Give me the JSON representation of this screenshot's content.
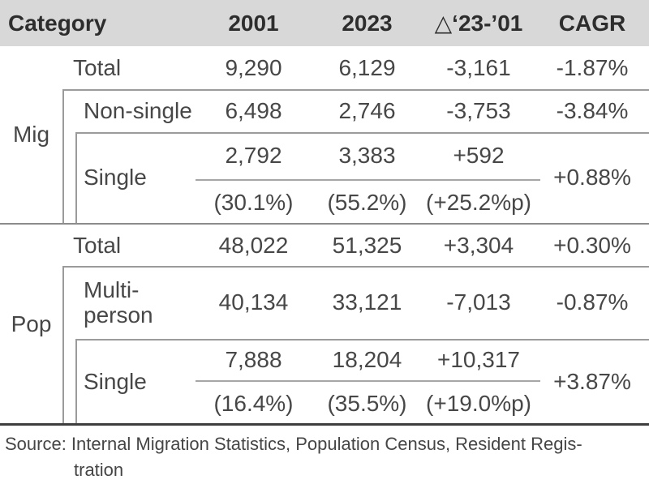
{
  "header": {
    "category": "Category",
    "y2001": "2001",
    "y2023": "2023",
    "delta": "△‘23-’01",
    "cagr": "CAGR"
  },
  "mig": {
    "group_label": "Mig",
    "total": {
      "label": "Total",
      "y2001": "9,290",
      "y2023": "6,129",
      "delta": "-3,161",
      "cagr": "-1.87%"
    },
    "nonsingle": {
      "label": "Non-single",
      "y2001": "6,498",
      "y2023": "2,746",
      "delta": "-3,753",
      "cagr": "-3.84%"
    },
    "single": {
      "label": "Single",
      "y2001": "2,792",
      "y2023": "3,383",
      "delta": "+592",
      "pct2001": "(30.1%)",
      "pct2023": "(55.2%)",
      "pctdelta": "(+25.2%p)",
      "cagr": "+0.88%"
    }
  },
  "pop": {
    "group_label": "Pop",
    "total": {
      "label": "Total",
      "y2001": "48,022",
      "y2023": "51,325",
      "delta": "+3,304",
      "cagr": "+0.30%"
    },
    "multi": {
      "label": "Multi-person",
      "y2001": "40,134",
      "y2023": "33,121",
      "delta": "-7,013",
      "cagr": "-0.87%"
    },
    "single": {
      "label": "Single",
      "y2001": "7,888",
      "y2023": "18,204",
      "delta": "+10,317",
      "pct2001": "(16.4%)",
      "pct2023": "(35.5%)",
      "pctdelta": "(+19.0%p)",
      "cagr": "+3.87%"
    }
  },
  "source": {
    "line1": "Source: Internal Migration Statistics, Population Census, Resident Regis-",
    "line2": "tration"
  },
  "colors": {
    "header_bg": "#d8d8d8",
    "box_line": "#9b9b9b",
    "section_divider": "#8c8c8c",
    "table_bottom_line": "#3e3e3e",
    "header_text": "#2d2d2d",
    "body_text": "#474747"
  },
  "chart_data": {
    "type": "table",
    "title": "",
    "columns": [
      "Category",
      "2001",
      "2023",
      "△‘23-’01",
      "CAGR"
    ],
    "rows": [
      {
        "group": "Mig",
        "category": "Total",
        "v2001": 9290,
        "v2023": 6129,
        "delta": -3161,
        "cagr_pct": -1.87
      },
      {
        "group": "Mig",
        "category": "Non-single",
        "v2001": 6498,
        "v2023": 2746,
        "delta": -3753,
        "cagr_pct": -3.84
      },
      {
        "group": "Mig",
        "category": "Single",
        "v2001": 2792,
        "v2023": 3383,
        "delta": 592,
        "cagr_pct": 0.88,
        "share_2001_pct": 30.1,
        "share_2023_pct": 55.2,
        "share_delta_pp": 25.2
      },
      {
        "group": "Pop",
        "category": "Total",
        "v2001": 48022,
        "v2023": 51325,
        "delta": 3304,
        "cagr_pct": 0.3
      },
      {
        "group": "Pop",
        "category": "Multi-person",
        "v2001": 40134,
        "v2023": 33121,
        "delta": -7013,
        "cagr_pct": -0.87
      },
      {
        "group": "Pop",
        "category": "Single",
        "v2001": 7888,
        "v2023": 18204,
        "delta": 10317,
        "cagr_pct": 3.87,
        "share_2001_pct": 16.4,
        "share_2023_pct": 35.5,
        "share_delta_pp": 19.0
      }
    ],
    "source": "Internal Migration Statistics, Population Census, Resident Registration",
    "layout_hints": {
      "nested_groups": true,
      "grid": "partial",
      "header_background": "#d8d8d8"
    }
  }
}
